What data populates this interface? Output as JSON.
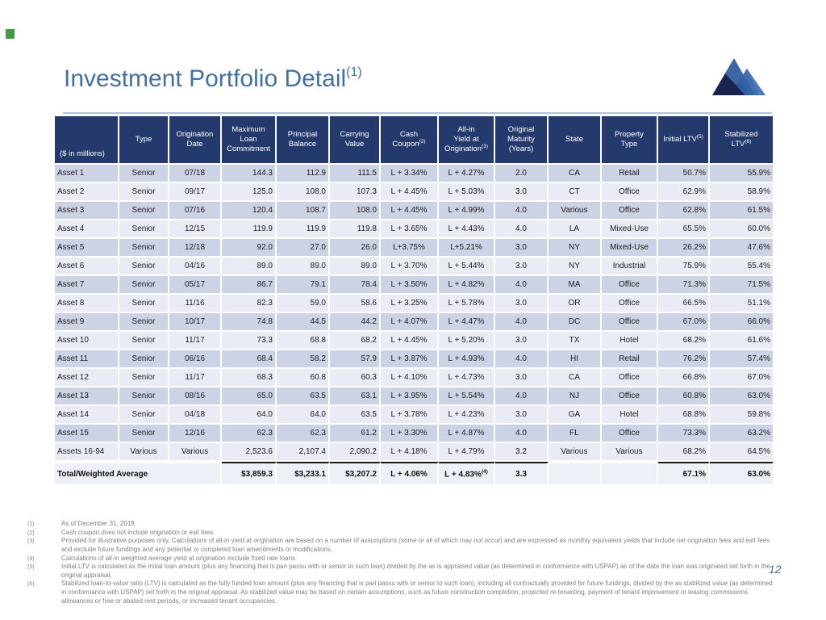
{
  "page": {
    "number": "12"
  },
  "title": {
    "text": "Investment Portfolio Detail",
    "superscript": "(1)"
  },
  "colors": {
    "title_blue": "#4270a5",
    "header_bg": "#253a6c",
    "row_dark": "#ccd3e4",
    "row_light": "#e9ecf4",
    "divider_blue": "#a9c5e0",
    "footnote_gray": "#7f7f7f",
    "marker_green": "#3f9b47",
    "logo_dark_navy": "#19254e",
    "logo_medium_blue": "#2c58a0",
    "logo_light_blue": "#4d7cb8"
  },
  "logo": {
    "name": "mountain-logo"
  },
  "table": {
    "columns": [
      {
        "label": "($ in millions)"
      },
      {
        "label": "Type"
      },
      {
        "label": "Origination\nDate"
      },
      {
        "label": "Maximum\nLoan\nCommitment"
      },
      {
        "label": "Principal\nBalance"
      },
      {
        "label": "Carrying\nValue"
      },
      {
        "label": "Cash\nCoupon",
        "sup": "(2)"
      },
      {
        "label": "All-in\nYield at\nOrigination",
        "sup": "(3)"
      },
      {
        "label": "Original\nMaturity\n(Years)"
      },
      {
        "label": "State"
      },
      {
        "label": "Property\nType"
      },
      {
        "label": "Initial LTV",
        "sup": "(5)"
      },
      {
        "label": "Stabilized\nLTV",
        "sup": "(6)"
      }
    ],
    "rows": [
      [
        "Asset 1",
        "Senior",
        "07/18",
        "144.3",
        "112.9",
        "111.5",
        "L + 3.34%",
        "L + 4.27%",
        "2.0",
        "CA",
        "Retail",
        "50.7%",
        "55.9%"
      ],
      [
        "Asset 2",
        "Senior",
        "09/17",
        "125.0",
        "108.0",
        "107.3",
        "L + 4.45%",
        "L + 5.03%",
        "3.0",
        "CT",
        "Office",
        "62.9%",
        "58.9%"
      ],
      [
        "Asset 3",
        "Senior",
        "07/16",
        "120.4",
        "108.7",
        "108.0",
        "L + 4.45%",
        "L + 4.99%",
        "4.0",
        "Various",
        "Office",
        "62.8%",
        "61.5%"
      ],
      [
        "Asset 4",
        "Senior",
        "12/15",
        "119.9",
        "119.9",
        "119.8",
        "L + 3.65%",
        "L + 4.43%",
        "4.0",
        "LA",
        "Mixed-Use",
        "65.5%",
        "60.0%"
      ],
      [
        "Asset 5",
        "Senior",
        "12/18",
        "92.0",
        "27.0",
        "26.0",
        "L+3.75%",
        "L+5.21%",
        "3.0",
        "NY",
        "Mixed-Use",
        "26.2%",
        "47.6%"
      ],
      [
        "Asset 6",
        "Senior",
        "04/16",
        "89.0",
        "89.0",
        "89.0",
        "L + 3.70%",
        "L + 5.44%",
        "3.0",
        "NY",
        "Industrial",
        "75.9%",
        "55.4%"
      ],
      [
        "Asset 7",
        "Senior",
        "05/17",
        "86.7",
        "79.1",
        "78.4",
        "L + 3.50%",
        "L + 4.82%",
        "4.0",
        "MA",
        "Office",
        "71.3%",
        "71.5%"
      ],
      [
        "Asset 8",
        "Senior",
        "11/16",
        "82.3",
        "59.0",
        "58.6",
        "L + 3.25%",
        "L + 5.78%",
        "3.0",
        "OR",
        "Office",
        "66.5%",
        "51.1%"
      ],
      [
        "Asset 9",
        "Senior",
        "10/17",
        "74.8",
        "44.5",
        "44.2",
        "L + 4.07%",
        "L + 4.47%",
        "4.0",
        "DC",
        "Office",
        "67.0%",
        "66.0%"
      ],
      [
        "Asset 10",
        "Senior",
        "11/17",
        "73.3",
        "68.8",
        "68.2",
        "L + 4.45%",
        "L + 5.20%",
        "3.0",
        "TX",
        "Hotel",
        "68.2%",
        "61.6%"
      ],
      [
        "Asset 11",
        "Senior",
        "06/16",
        "68.4",
        "58.2",
        "57.9",
        "L + 3.87%",
        "L + 4.93%",
        "4.0",
        "HI",
        "Retail",
        "76.2%",
        "57.4%"
      ],
      [
        "Asset 12",
        "Senior",
        "11/17",
        "68.3",
        "60.8",
        "60.3",
        "L + 4.10%",
        "L + 4.73%",
        "3.0",
        "CA",
        "Office",
        "66.8%",
        "67.0%"
      ],
      [
        "Asset 13",
        "Senior",
        "08/16",
        "65.0",
        "63.5",
        "63.1",
        "L + 3.95%",
        "L + 5.54%",
        "4.0",
        "NJ",
        "Office",
        "60.8%",
        "63.0%"
      ],
      [
        "Asset 14",
        "Senior",
        "04/18",
        "64.0",
        "64.0",
        "63.5",
        "L + 3.78%",
        "L + 4.23%",
        "3.0",
        "GA",
        "Hotel",
        "68.8%",
        "59.8%"
      ],
      [
        "Asset 15",
        "Senior",
        "12/16",
        "62.3",
        "62.3",
        "61.2",
        "L + 3.30%",
        "L + 4.87%",
        "4.0",
        "FL",
        "Office",
        "73.3%",
        "63.2%"
      ],
      [
        "Assets 16-94",
        "Various",
        "Various",
        "2,523.6",
        "2,107.4",
        "2,090.2",
        "L + 4.18%",
        "L + 4.79%",
        "3.2",
        "Various",
        "Various",
        "68.2%",
        "64.5%"
      ]
    ],
    "total_row": {
      "label": "Total/Weighted Average",
      "commitment": "$3,859.3",
      "principal": "$3,233.1",
      "carrying": "$3,207.2",
      "coupon": "L + 4.06%",
      "yield": "L + 4.83%",
      "yield_sup": "(4)",
      "maturity": "3.3",
      "state": "",
      "property": "",
      "initial_ltv": "67.1%",
      "stabilized_ltv": "63.0%"
    }
  },
  "footnotes": [
    {
      "num": "(1)",
      "text": "As of December 31, 2018."
    },
    {
      "num": "(2)",
      "text": "Cash coupon does not include origination or exit fees."
    },
    {
      "num": "(3)",
      "text": "Provided for illustrative purposes only. Calculations of all-in yield at origination are based on a number of assumptions (some or all of which may not occur) and are expressed as monthly equivalent yields that include net origination fees and exit fees and exclude future fundings and any potential or completed loan amendments or modifications."
    },
    {
      "num": "(4)",
      "text": "Calculations of all-in weighted average yield at origination exclude fixed rate loans."
    },
    {
      "num": "(5)",
      "text": "Initial LTV is calculated as the initial loan amount (plus any financing that is pari passu with or senior to such loan) divided by the as is appraised value (as determined in conformance with USPAP) as of the date the loan was originated set forth in the original appraisal."
    },
    {
      "num": "(6)",
      "text": "Stabilized loan-to-value ratio (LTV) is calculated as the fully funded loan amount (plus any financing that is pari passu with or senior to such loan), including all contractually provided for future fundings, divided by the as stabilized value (as determined in conformance with USPAP) set forth in the original appraisal. As stabilized value may be based on certain assumptions, such as future construction completion, projected re-tenanting, payment of tenant improvement or leasing commissions allowances or free or abated rent periods, or increased tenant occupancies."
    }
  ]
}
